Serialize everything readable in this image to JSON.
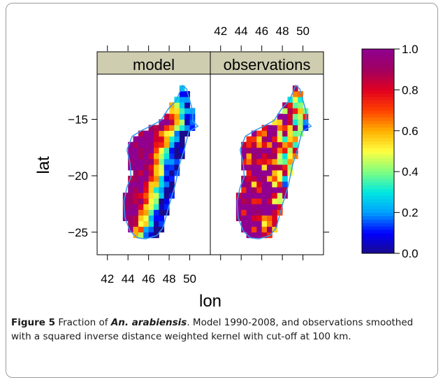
{
  "chart_data": {
    "type": "heatmap",
    "panels": [
      {
        "name": "model"
      },
      {
        "name": "observations"
      }
    ],
    "xlabel": "lon",
    "ylabel": "lat",
    "x_ticks": [
      42,
      44,
      46,
      48,
      50
    ],
    "y_ticks": [
      -15,
      -20,
      -25
    ],
    "xlim": [
      41,
      52
    ],
    "ylim": [
      -27,
      -11
    ],
    "colorkey": {
      "ticks": [
        "1.0",
        "0.8",
        "0.6",
        "0.4",
        "0.2",
        "0.0"
      ],
      "range": [
        0,
        1
      ],
      "placement": "right",
      "colors": [
        "#1a0a8c",
        "#0000ff",
        "#00a0ff",
        "#00e8e0",
        "#80ff80",
        "#ffff40",
        "#ffb000",
        "#ff4000",
        "#e00020",
        "#a00060",
        "#900090"
      ]
    },
    "grid": false
  },
  "caption": {
    "label": "Figure 5",
    "text_before": "Fraction of ",
    "species": "An. arabiensis",
    "text_after": ". Model 1990-2008, and observations smoothed with a squared inverse distance weighted kernel with cut-off at 100 km."
  }
}
